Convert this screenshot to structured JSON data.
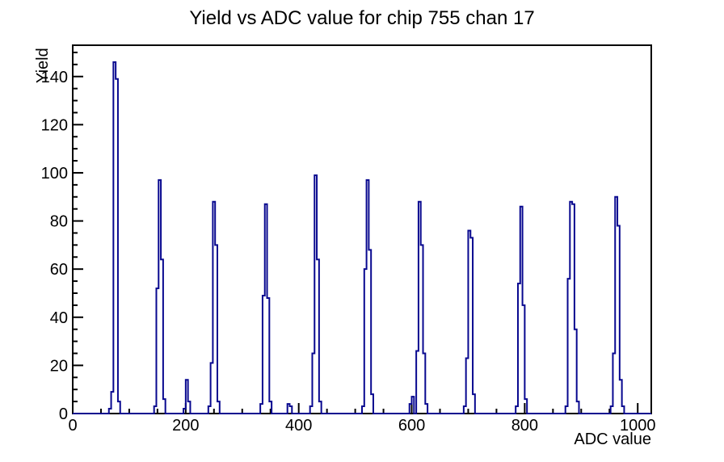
{
  "chart_data": {
    "type": "bar",
    "style": "step-histogram-outline",
    "title": "Yield vs ADC value for chip 755 chan 17",
    "xlabel": "ADC value",
    "ylabel": "Yield",
    "xlim": [
      0,
      1024
    ],
    "ylim": [
      0,
      153
    ],
    "grid": false,
    "legend": "none",
    "line_color": "#08088f",
    "axis_color": "#000000",
    "bin_width": 4,
    "x_ticks": [
      {
        "v": 0,
        "label": "0"
      },
      {
        "v": 200,
        "label": "200"
      },
      {
        "v": 400,
        "label": "400"
      },
      {
        "v": 600,
        "label": "600"
      },
      {
        "v": 800,
        "label": "800"
      },
      {
        "v": 1000,
        "label": "1000"
      }
    ],
    "x_minor_step": 50,
    "y_ticks": [
      {
        "v": 0,
        "label": "0"
      },
      {
        "v": 20,
        "label": "20"
      },
      {
        "v": 40,
        "label": "40"
      },
      {
        "v": 60,
        "label": "60"
      },
      {
        "v": 80,
        "label": "80"
      },
      {
        "v": 100,
        "label": "100"
      },
      {
        "v": 120,
        "label": "120"
      },
      {
        "v": 140,
        "label": "140"
      }
    ],
    "y_minor_step": 5,
    "peaks": [
      [
        [
          64,
          2
        ],
        [
          68,
          9
        ],
        [
          72,
          146
        ],
        [
          76,
          139
        ],
        [
          80,
          5
        ]
      ],
      [
        [
          144,
          3
        ],
        [
          148,
          52
        ],
        [
          152,
          97
        ],
        [
          156,
          64
        ],
        [
          160,
          6
        ]
      ],
      [
        [
          196,
          2
        ],
        [
          200,
          14
        ],
        [
          204,
          5
        ]
      ],
      [
        [
          240,
          3
        ],
        [
          244,
          21
        ],
        [
          248,
          88
        ],
        [
          252,
          70
        ],
        [
          256,
          5
        ]
      ],
      [
        [
          332,
          4
        ],
        [
          336,
          49
        ],
        [
          340,
          87
        ],
        [
          344,
          48
        ],
        [
          348,
          5
        ]
      ],
      [
        [
          380,
          4
        ],
        [
          384,
          3
        ]
      ],
      [
        [
          420,
          3
        ],
        [
          424,
          25
        ],
        [
          428,
          99
        ],
        [
          432,
          64
        ],
        [
          436,
          5
        ]
      ],
      [
        [
          512,
          3
        ],
        [
          516,
          60
        ],
        [
          520,
          97
        ],
        [
          524,
          68
        ],
        [
          528,
          8
        ]
      ],
      [
        [
          596,
          4
        ],
        [
          600,
          7
        ]
      ],
      [
        [
          608,
          26
        ],
        [
          612,
          88
        ],
        [
          616,
          70
        ],
        [
          620,
          25
        ],
        [
          624,
          4
        ]
      ],
      [
        [
          692,
          3
        ],
        [
          696,
          23
        ],
        [
          700,
          76
        ],
        [
          704,
          73
        ],
        [
          708,
          8
        ]
      ],
      [
        [
          784,
          3
        ],
        [
          788,
          54
        ],
        [
          792,
          86
        ],
        [
          796,
          45
        ],
        [
          800,
          6
        ]
      ],
      [
        [
          872,
          3
        ],
        [
          876,
          56
        ],
        [
          880,
          88
        ],
        [
          884,
          87
        ],
        [
          888,
          35
        ],
        [
          892,
          5
        ]
      ],
      [
        [
          952,
          3
        ],
        [
          956,
          25
        ],
        [
          960,
          90
        ],
        [
          964,
          78
        ],
        [
          968,
          14
        ],
        [
          972,
          3
        ]
      ]
    ]
  }
}
